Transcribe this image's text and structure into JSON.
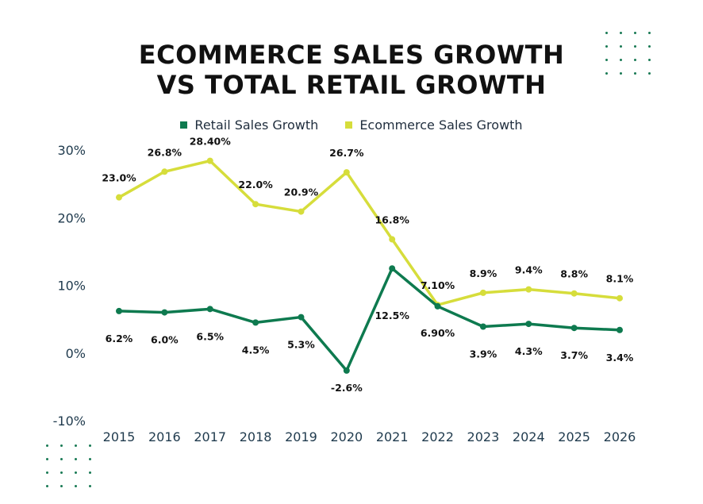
{
  "title_lines": [
    "ECOMMERCE SALES GROWTH",
    "VS TOTAL RETAIL GROWTH"
  ],
  "colors": {
    "retail": "#0e7a4f",
    "ecommerce": "#d6dd3b",
    "dots": "#1a7a55"
  },
  "chart_data": {
    "type": "line",
    "title": "ECOMMERCE SALES GROWTH VS TOTAL RETAIL GROWTH",
    "categories": [
      "2015",
      "2016",
      "2017",
      "2018",
      "2019",
      "2020",
      "2021",
      "2022",
      "2023",
      "2024",
      "2025",
      "2026"
    ],
    "series": [
      {
        "name": "Retail Sales Growth",
        "values": [
          6.2,
          6.0,
          6.5,
          4.5,
          5.3,
          -2.6,
          12.5,
          6.9,
          3.9,
          4.3,
          3.7,
          3.4
        ],
        "labels": [
          "6.2%",
          "6.0%",
          "6.5%",
          "4.5%",
          "5.3%",
          "-2.6%",
          "12.5%",
          "6.90%",
          "3.9%",
          "4.3%",
          "3.7%",
          "3.4%"
        ]
      },
      {
        "name": "Ecommerce Sales Growth",
        "values": [
          23.0,
          26.8,
          28.4,
          22.0,
          20.9,
          26.7,
          16.8,
          7.1,
          8.9,
          9.4,
          8.8,
          8.1
        ],
        "labels": [
          "23.0%",
          "26.8%",
          "28.40%",
          "22.0%",
          "20.9%",
          "26.7%",
          "16.8%",
          "7.10%",
          "8.9%",
          "9.4%",
          "8.8%",
          "8.1%"
        ]
      }
    ],
    "ylim": [
      -10,
      30
    ],
    "yticks": [
      30,
      20,
      10,
      0,
      -10
    ],
    "ytick_labels": [
      "30%",
      "20%",
      "10%",
      "0%",
      "-10%"
    ],
    "grid": false,
    "legend": "top-center"
  }
}
